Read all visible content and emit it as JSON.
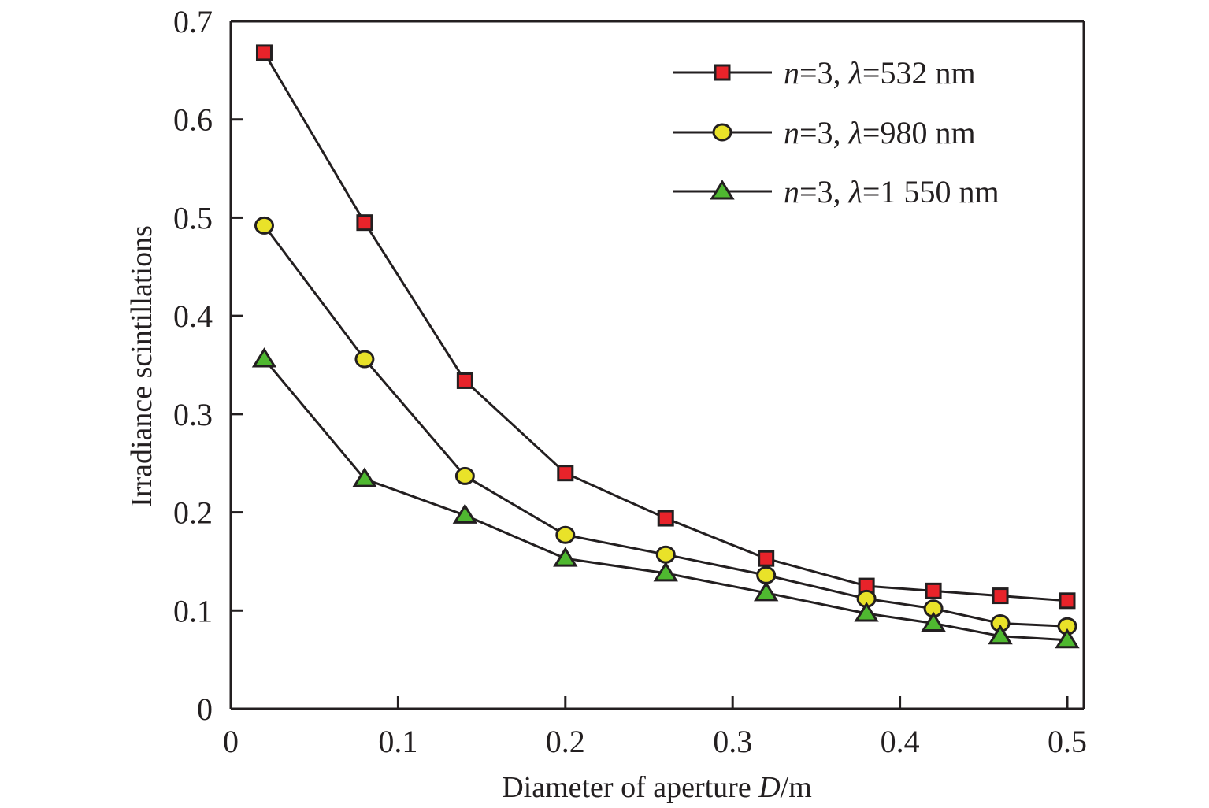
{
  "chart_data": {
    "type": "line",
    "title": "",
    "xlabel": "Diameter of aperture D/m",
    "xlabel_parts": {
      "pre": "Diameter of aperture ",
      "var": "D",
      "post": "/m"
    },
    "ylabel": "Irradiance scintillations",
    "xlim": [
      0,
      0.5
    ],
    "ylim": [
      0,
      0.7
    ],
    "xticks": [
      0,
      0.1,
      0.2,
      0.3,
      0.4,
      0.5
    ],
    "xtick_labels": [
      "0",
      "0.1",
      "0.2",
      "0.3",
      "0.4",
      "0.5"
    ],
    "yticks": [
      0,
      0.1,
      0.2,
      0.3,
      0.4,
      0.5,
      0.6,
      0.7
    ],
    "ytick_labels": [
      "0",
      "0.1",
      "0.2",
      "0.3",
      "0.4",
      "0.5",
      "0.6",
      "0.7"
    ],
    "grid": false,
    "legend_position": "top-right",
    "x": [
      0.02,
      0.08,
      0.14,
      0.2,
      0.26,
      0.32,
      0.38,
      0.42,
      0.46,
      0.5
    ],
    "series": [
      {
        "name": "n=3, λ=532 nm",
        "label_parts": {
          "n": "n",
          "eq1": "=3, ",
          "lambda": "λ",
          "eq2": "=532 nm"
        },
        "marker": "square",
        "color": "#e8232a",
        "values": [
          0.668,
          0.495,
          0.334,
          0.24,
          0.194,
          0.153,
          0.125,
          0.12,
          0.115,
          0.11
        ]
      },
      {
        "name": "n=3, λ=980 nm",
        "label_parts": {
          "n": "n",
          "eq1": "=3, ",
          "lambda": "λ",
          "eq2": "=980 nm"
        },
        "marker": "circle",
        "color": "#e9e229",
        "values": [
          0.492,
          0.356,
          0.237,
          0.177,
          0.157,
          0.136,
          0.112,
          0.102,
          0.087,
          0.084
        ]
      },
      {
        "name": "n=3, λ=1 550 nm",
        "label_parts": {
          "n": "n",
          "eq1": "=3, ",
          "lambda": "λ",
          "eq2": "=1 550 nm"
        },
        "marker": "triangle",
        "color": "#4fb830",
        "values": [
          0.356,
          0.234,
          0.197,
          0.153,
          0.138,
          0.118,
          0.097,
          0.087,
          0.074,
          0.07
        ]
      }
    ],
    "line_color": "#231f20"
  }
}
